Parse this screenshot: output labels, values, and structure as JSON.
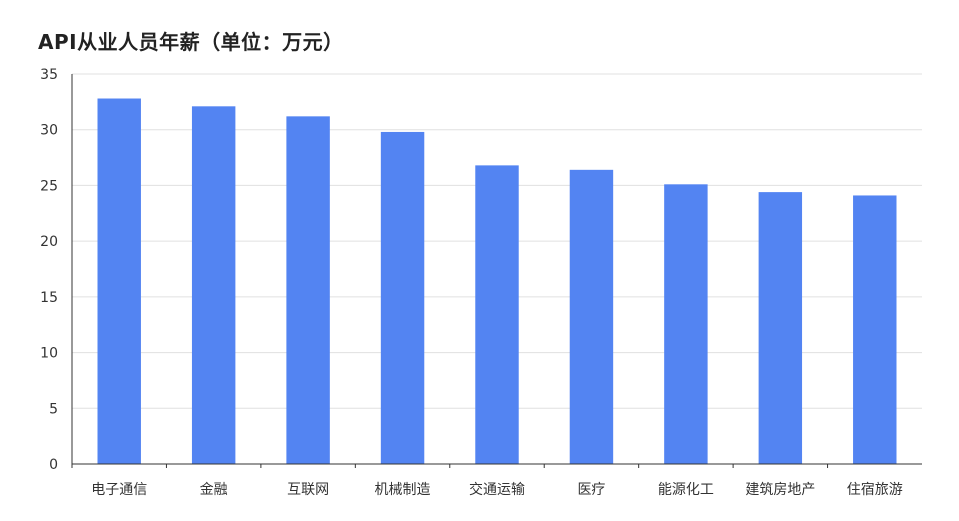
{
  "chart_data": {
    "type": "bar",
    "title": "API从业人员年薪（单位：万元）",
    "xlabel": "",
    "ylabel": "",
    "categories": [
      "电子通信",
      "金融",
      "互联网",
      "机械制造",
      "交通运输",
      "医疗",
      "能源化工",
      "建筑房地产",
      "住宿旅游"
    ],
    "values": [
      32.8,
      32.1,
      31.2,
      29.8,
      26.8,
      26.4,
      25.1,
      24.4,
      24.1
    ],
    "ylim": [
      0,
      35
    ],
    "yticks": [
      0,
      5,
      10,
      15,
      20,
      25,
      30,
      35
    ],
    "grid": true,
    "legend": "none",
    "colors": {
      "bar": "#5384f2",
      "grid": "#e0e0e0",
      "axis": "#333333"
    }
  }
}
